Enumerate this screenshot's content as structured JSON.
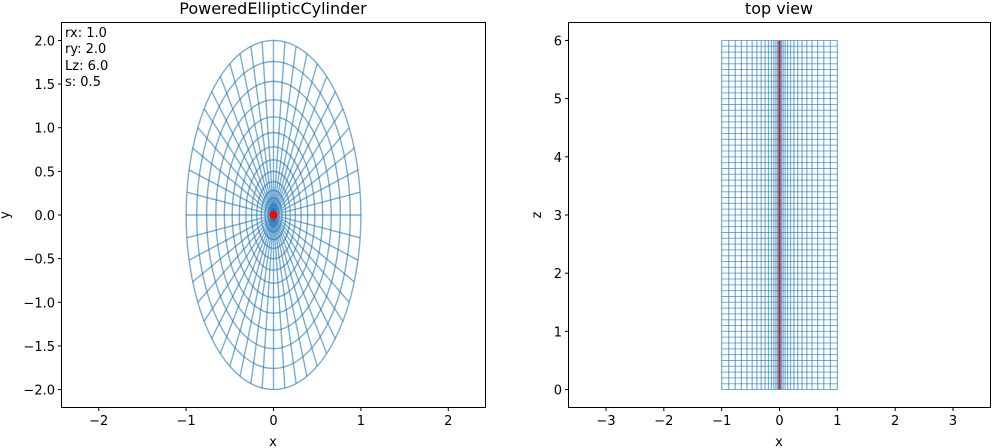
{
  "chart_data": [
    {
      "type": "line",
      "title": "PoweredEllipticCylinder",
      "xlabel": "x",
      "ylabel": "y",
      "xlim": [
        -2.42,
        2.42
      ],
      "ylim": [
        -2.2,
        2.2
      ],
      "xticks": [
        -2,
        -1,
        0,
        1,
        2
      ],
      "yticks": [
        -2.0,
        -1.5,
        -1.0,
        -0.5,
        0.0,
        0.5,
        1.0,
        1.5,
        2.0
      ],
      "annotation": [
        "rx: 1.0",
        "ry: 2.0",
        "Lz: 6.0",
        "s: 0.5"
      ],
      "mesh": {
        "rx": 1.0,
        "ry": 2.0,
        "power": 0.5,
        "n_rings": 16,
        "n_spokes": 48,
        "color": "#1f77b4",
        "alpha": 0.6
      },
      "highlight_point": {
        "x": 0,
        "y": 0,
        "color": "#ff0000"
      }
    },
    {
      "type": "line",
      "title": "top view",
      "xlabel": "x",
      "ylabel": "z",
      "xlim": [
        -3.64,
        3.64
      ],
      "ylim": [
        -0.3,
        6.3
      ],
      "xticks": [
        -3,
        -2,
        -1,
        0,
        1,
        2,
        3
      ],
      "yticks": [
        0,
        1,
        2,
        3,
        4,
        5,
        6
      ],
      "mesh": {
        "x_range": [
          -1,
          1
        ],
        "z_range": [
          0,
          6
        ],
        "n_z_lines": 61,
        "power": 0.5,
        "n_x_lines": 16,
        "color": "#1f77b4",
        "alpha": 0.6
      },
      "highlight_line": {
        "x": 0,
        "z": [
          0,
          6
        ],
        "color": "#d62728"
      }
    }
  ]
}
